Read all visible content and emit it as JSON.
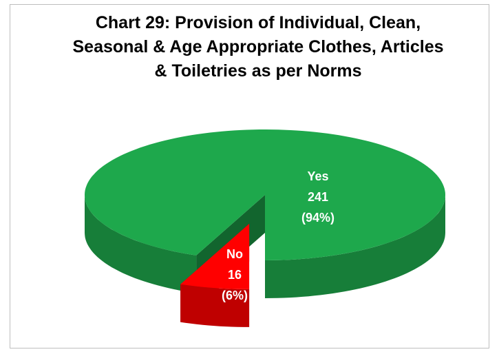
{
  "chart_data": {
    "type": "pie",
    "title": "Chart 29: Provision of Individual, Clean, Seasonal & Age Appropriate Clothes, Articles & Toiletries as per Norms",
    "categories": [
      "Yes",
      "No"
    ],
    "values": [
      241,
      16
    ],
    "percent_labels": [
      "(94%)",
      "(6%)"
    ],
    "colors": [
      "#1ea84c",
      "#ff0000"
    ]
  }
}
